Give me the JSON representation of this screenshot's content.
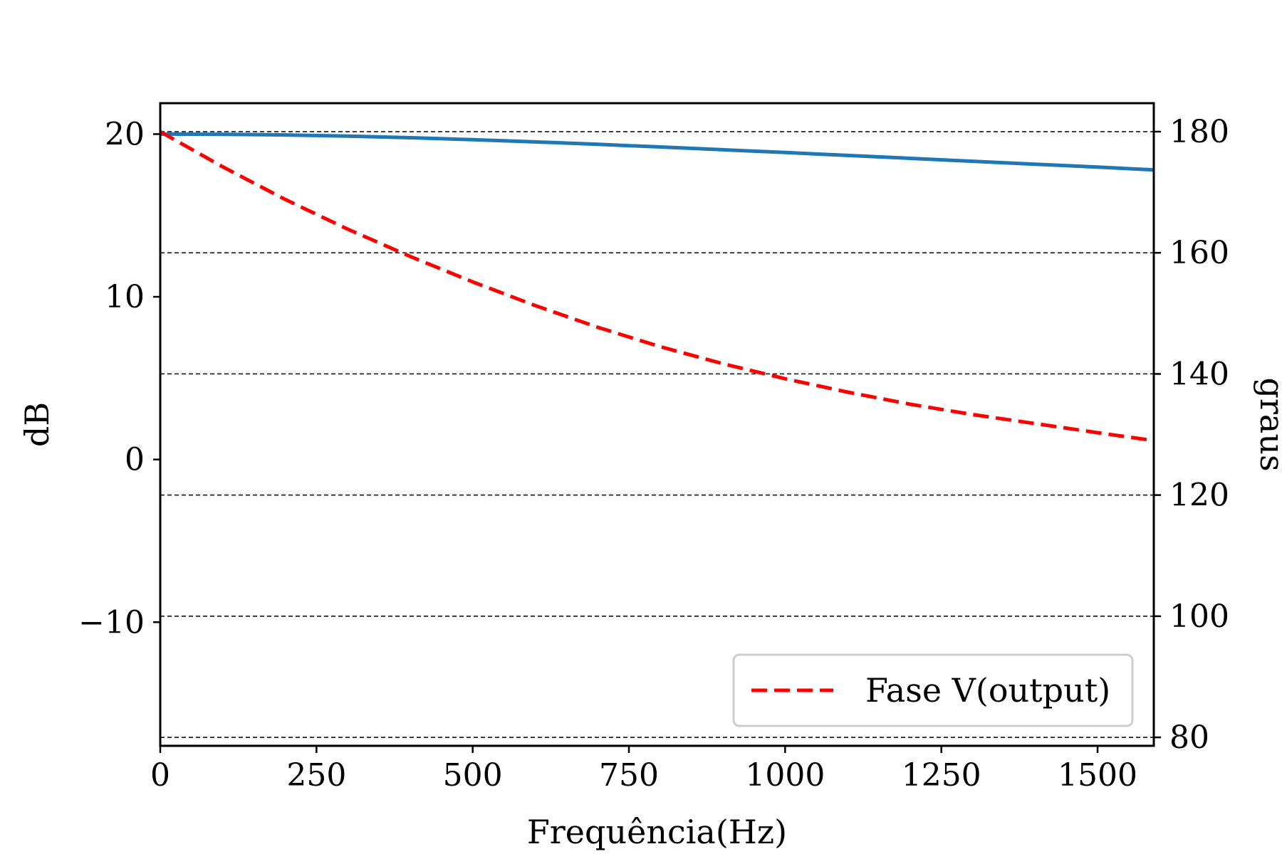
{
  "chart_data": {
    "type": "line",
    "xlabel": "Frequência(Hz)",
    "ylabel_left": "dB",
    "ylabel_right": "graus",
    "xlim": [
      0,
      1590
    ],
    "ylim_left": [
      -17.6,
      21.9
    ],
    "ylim_right": [
      78.6,
      184.7
    ],
    "x_ticks": [
      0,
      250,
      500,
      750,
      1000,
      1250,
      1500
    ],
    "x_tick_labels": [
      "0",
      "250",
      "500",
      "750",
      "1000",
      "1250",
      "1500"
    ],
    "y_left_ticks": [
      20,
      10,
      0,
      -10
    ],
    "y_left_tick_labels": [
      "20",
      "10",
      "0",
      "−10"
    ],
    "y_right_ticks": [
      180,
      160,
      140,
      120,
      100,
      80
    ],
    "y_right_tick_labels": [
      "180",
      "160",
      "140",
      "120",
      "100",
      "80"
    ],
    "grid": {
      "axis": "y-right",
      "style": "dashed",
      "color": "#000000"
    },
    "legend": {
      "position": "lower-right",
      "entries": [
        "Fase V(output)"
      ]
    },
    "series": [
      {
        "axis": "left",
        "color": "#1f77b4",
        "style": "solid",
        "x": [
          0,
          100,
          200,
          300,
          400,
          500,
          600,
          700,
          800,
          900,
          1000,
          1100,
          1200,
          1300,
          1400,
          1500,
          1590
        ],
        "y": [
          20.0,
          19.99,
          19.95,
          19.88,
          19.78,
          19.66,
          19.52,
          19.37,
          19.21,
          19.04,
          18.87,
          18.69,
          18.51,
          18.33,
          18.15,
          17.97,
          17.8
        ]
      },
      {
        "name": "Fase V(output)",
        "axis": "right",
        "color": "#ff0000",
        "style": "dashed",
        "x": [
          0,
          100,
          200,
          300,
          400,
          500,
          600,
          700,
          800,
          900,
          1000,
          1100,
          1200,
          1300,
          1400,
          1500,
          1590
        ],
        "y": [
          180.0,
          174.2,
          168.8,
          163.9,
          159.4,
          155.2,
          151.3,
          147.7,
          144.5,
          141.7,
          139.2,
          137.0,
          135.0,
          133.3,
          131.8,
          130.3,
          129.0
        ]
      }
    ]
  }
}
